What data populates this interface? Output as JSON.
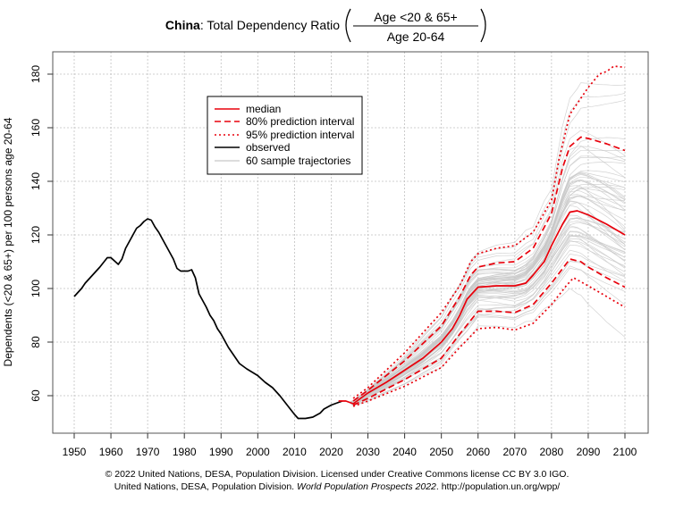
{
  "chart_data": {
    "type": "line",
    "title": {
      "country": "China",
      "text": ": Total Dependency Ratio",
      "numerator": "Age <20 & 65+",
      "denominator": "Age 20-64"
    },
    "xlabel": "",
    "ylabel": "Dependents (<20 & 65+) per 100 persons age 20-64",
    "xlim": [
      1944,
      2106
    ],
    "ylim": [
      46,
      188
    ],
    "xticks": [
      1950,
      1960,
      1970,
      1980,
      1990,
      2000,
      2010,
      2020,
      2030,
      2040,
      2050,
      2060,
      2070,
      2080,
      2090,
      2100
    ],
    "yticks": [
      60,
      80,
      100,
      120,
      140,
      160,
      180
    ],
    "grid": true,
    "legend_position": "top-left",
    "legend": [
      "median",
      "80% prediction interval",
      "95% prediction interval",
      "observed",
      "60 sample trajectories"
    ],
    "colors": {
      "median": "#e8000b",
      "observed": "#000000",
      "trajectories": "#c8c8c8",
      "grid": "#c0c0c0"
    },
    "series": [
      {
        "name": "observed",
        "x": [
          1950,
          1952,
          1953,
          1955,
          1957,
          1959,
          1960,
          1962,
          1963,
          1964,
          1966,
          1967,
          1968,
          1969,
          1970,
          1971,
          1972,
          1973,
          1975,
          1977,
          1978,
          1979,
          1981,
          1982,
          1983,
          1984,
          1986,
          1987,
          1988,
          1989,
          1990,
          1992,
          1994,
          1995,
          1997,
          2000,
          2002,
          2004,
          2006,
          2008,
          2010,
          2011,
          2013,
          2015,
          2017,
          2018,
          2020,
          2022,
          2023
        ],
        "y": [
          97,
          100,
          102,
          105,
          108,
          111.5,
          111.5,
          109,
          111,
          115,
          120,
          122.5,
          123.5,
          125,
          126,
          125.5,
          123,
          121,
          116,
          111,
          107.5,
          106.5,
          106.5,
          107,
          104,
          98,
          93,
          90,
          88,
          85,
          83,
          78,
          74,
          72,
          70,
          67.5,
          65,
          63,
          60,
          56.5,
          53,
          51.5,
          51.5,
          52,
          53.5,
          55,
          56.5,
          57.5,
          58
        ]
      },
      {
        "name": "median",
        "x": [
          2022,
          2024,
          2026,
          2028,
          2030,
          2035,
          2040,
          2045,
          2050,
          2053,
          2055,
          2057,
          2060,
          2065,
          2070,
          2073,
          2075,
          2078,
          2080,
          2083,
          2085,
          2087,
          2090,
          2095,
          2100
        ],
        "y": [
          58,
          58,
          57,
          59,
          61,
          65,
          69.5,
          74,
          80,
          85,
          90,
          96,
          100.5,
          101,
          101,
          102,
          105,
          110,
          116,
          124,
          128.5,
          129,
          127.5,
          124,
          120
        ]
      },
      {
        "name": "80% upper",
        "x": [
          2026,
          2030,
          2040,
          2050,
          2055,
          2058,
          2060,
          2065,
          2070,
          2075,
          2080,
          2083,
          2085,
          2088,
          2090,
          2095,
          2100
        ],
        "y": [
          58,
          62,
          73,
          86,
          97,
          105,
          108,
          109.5,
          110,
          115,
          128,
          145,
          153,
          156.5,
          156,
          154,
          151.5
        ]
      },
      {
        "name": "80% lower",
        "x": [
          2026,
          2030,
          2040,
          2050,
          2055,
          2060,
          2065,
          2070,
          2075,
          2080,
          2085,
          2088,
          2090,
          2095,
          2100
        ],
        "y": [
          56.5,
          59,
          66,
          74,
          83,
          91.5,
          91.5,
          91,
          94,
          102,
          111,
          110,
          108,
          104,
          100.5
        ]
      },
      {
        "name": "95% upper",
        "x": [
          2026,
          2030,
          2040,
          2050,
          2055,
          2058,
          2060,
          2065,
          2070,
          2075,
          2080,
          2082,
          2085,
          2090,
          2093,
          2095,
          2097,
          2100
        ],
        "y": [
          59,
          63,
          76,
          91,
          101,
          110,
          113,
          115,
          116,
          121,
          133,
          148,
          165,
          175,
          180,
          181,
          183,
          182.5
        ]
      },
      {
        "name": "95% lower",
        "x": [
          2026,
          2030,
          2040,
          2050,
          2055,
          2060,
          2065,
          2070,
          2075,
          2080,
          2084,
          2086,
          2090,
          2095,
          2100
        ],
        "y": [
          56,
          58,
          63.5,
          70.5,
          78,
          85,
          85.5,
          84.5,
          87,
          94,
          101,
          104,
          101,
          97,
          93
        ]
      }
    ],
    "n_trajectories": 60
  },
  "footer": {
    "line1": "© 2022 United Nations, DESA, Population Division. Licensed under Creative Commons license CC BY 3.0 IGO.",
    "line2_a": "United Nations, DESA, Population Division. ",
    "line2_b": "World Population Prospects 2022",
    "line2_c": ". http://population.un.org/wpp/"
  }
}
